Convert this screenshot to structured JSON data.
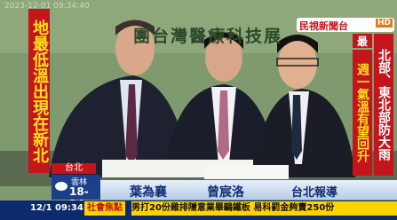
{
  "timestamp": "2023-12-01 09:34:40",
  "backdrop": "團台灣醫療科技展",
  "left_headline": "地最低溫出現在新北",
  "logo": {
    "name": "民視新聞台",
    "badge": "HD"
  },
  "right_headline": {
    "tag": "最新",
    "lines": [
      "北部、東北部防大雨",
      "週一氣溫有望回升"
    ]
  },
  "location": "台北",
  "weather": {
    "city": "雲林",
    "temp": "18-24"
  },
  "credits": {
    "reporter": "葉為襄",
    "camera": "曾宸洛",
    "place": "台北報導"
  },
  "ticker": {
    "time": "12/1 09:34",
    "section": "社會焦點",
    "text": "男打20份雞排隱意業畢鷗鐵板 易科罰金夠賣250份"
  }
}
